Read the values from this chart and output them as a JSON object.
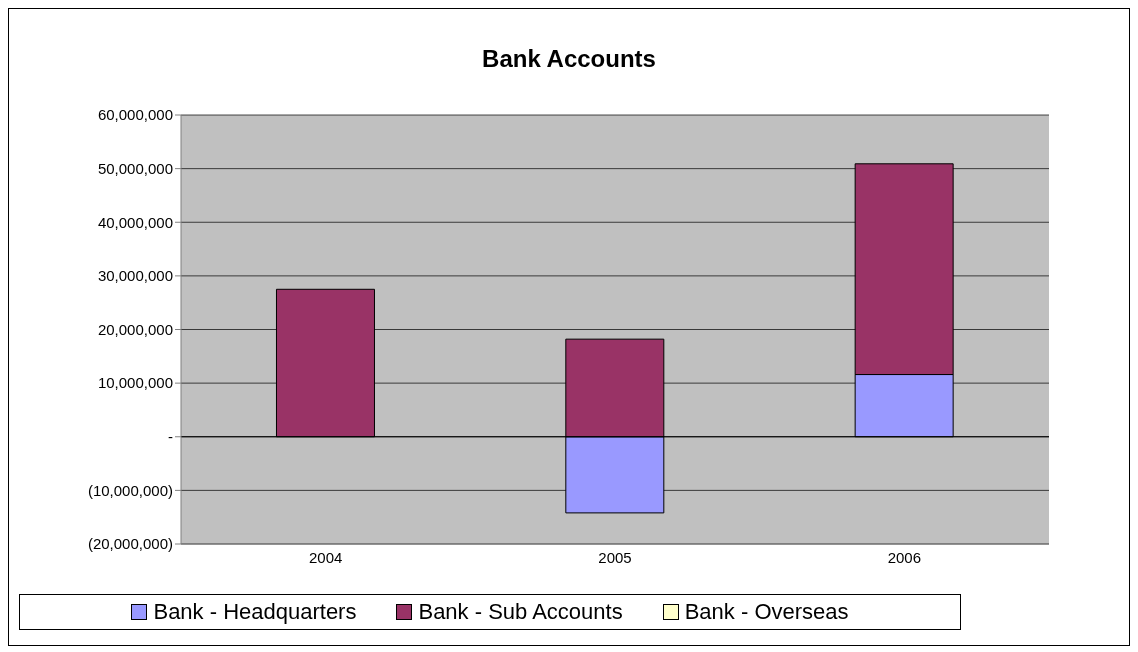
{
  "chart_data": {
    "type": "bar",
    "title": "Bank Accounts",
    "categories": [
      "2004",
      "2005",
      "2006"
    ],
    "stacked": true,
    "series": [
      {
        "name": "Bank - Headquarters",
        "color": "#9999ff",
        "values": [
          0,
          -14200000,
          11600000
        ]
      },
      {
        "name": "Bank - Sub Accounts",
        "color": "#993366",
        "values": [
          27500000,
          18200000,
          39300000
        ]
      },
      {
        "name": "Bank - Overseas",
        "color": "#ffffcc",
        "values": [
          0,
          0,
          0
        ]
      }
    ],
    "ylim": [
      -20000000,
      60000000
    ],
    "yticks": [
      {
        "value": -20000000,
        "label": "(20,000,000)"
      },
      {
        "value": -10000000,
        "label": "(10,000,000)"
      },
      {
        "value": 0,
        "label": "-"
      },
      {
        "value": 10000000,
        "label": "10,000,000"
      },
      {
        "value": 20000000,
        "label": "20,000,000"
      },
      {
        "value": 30000000,
        "label": "30,000,000"
      },
      {
        "value": 40000000,
        "label": "40,000,000"
      },
      {
        "value": 50000000,
        "label": "50,000,000"
      },
      {
        "value": 60000000,
        "label": "60,000,000"
      }
    ],
    "grid": "y",
    "legend": "bottom"
  }
}
